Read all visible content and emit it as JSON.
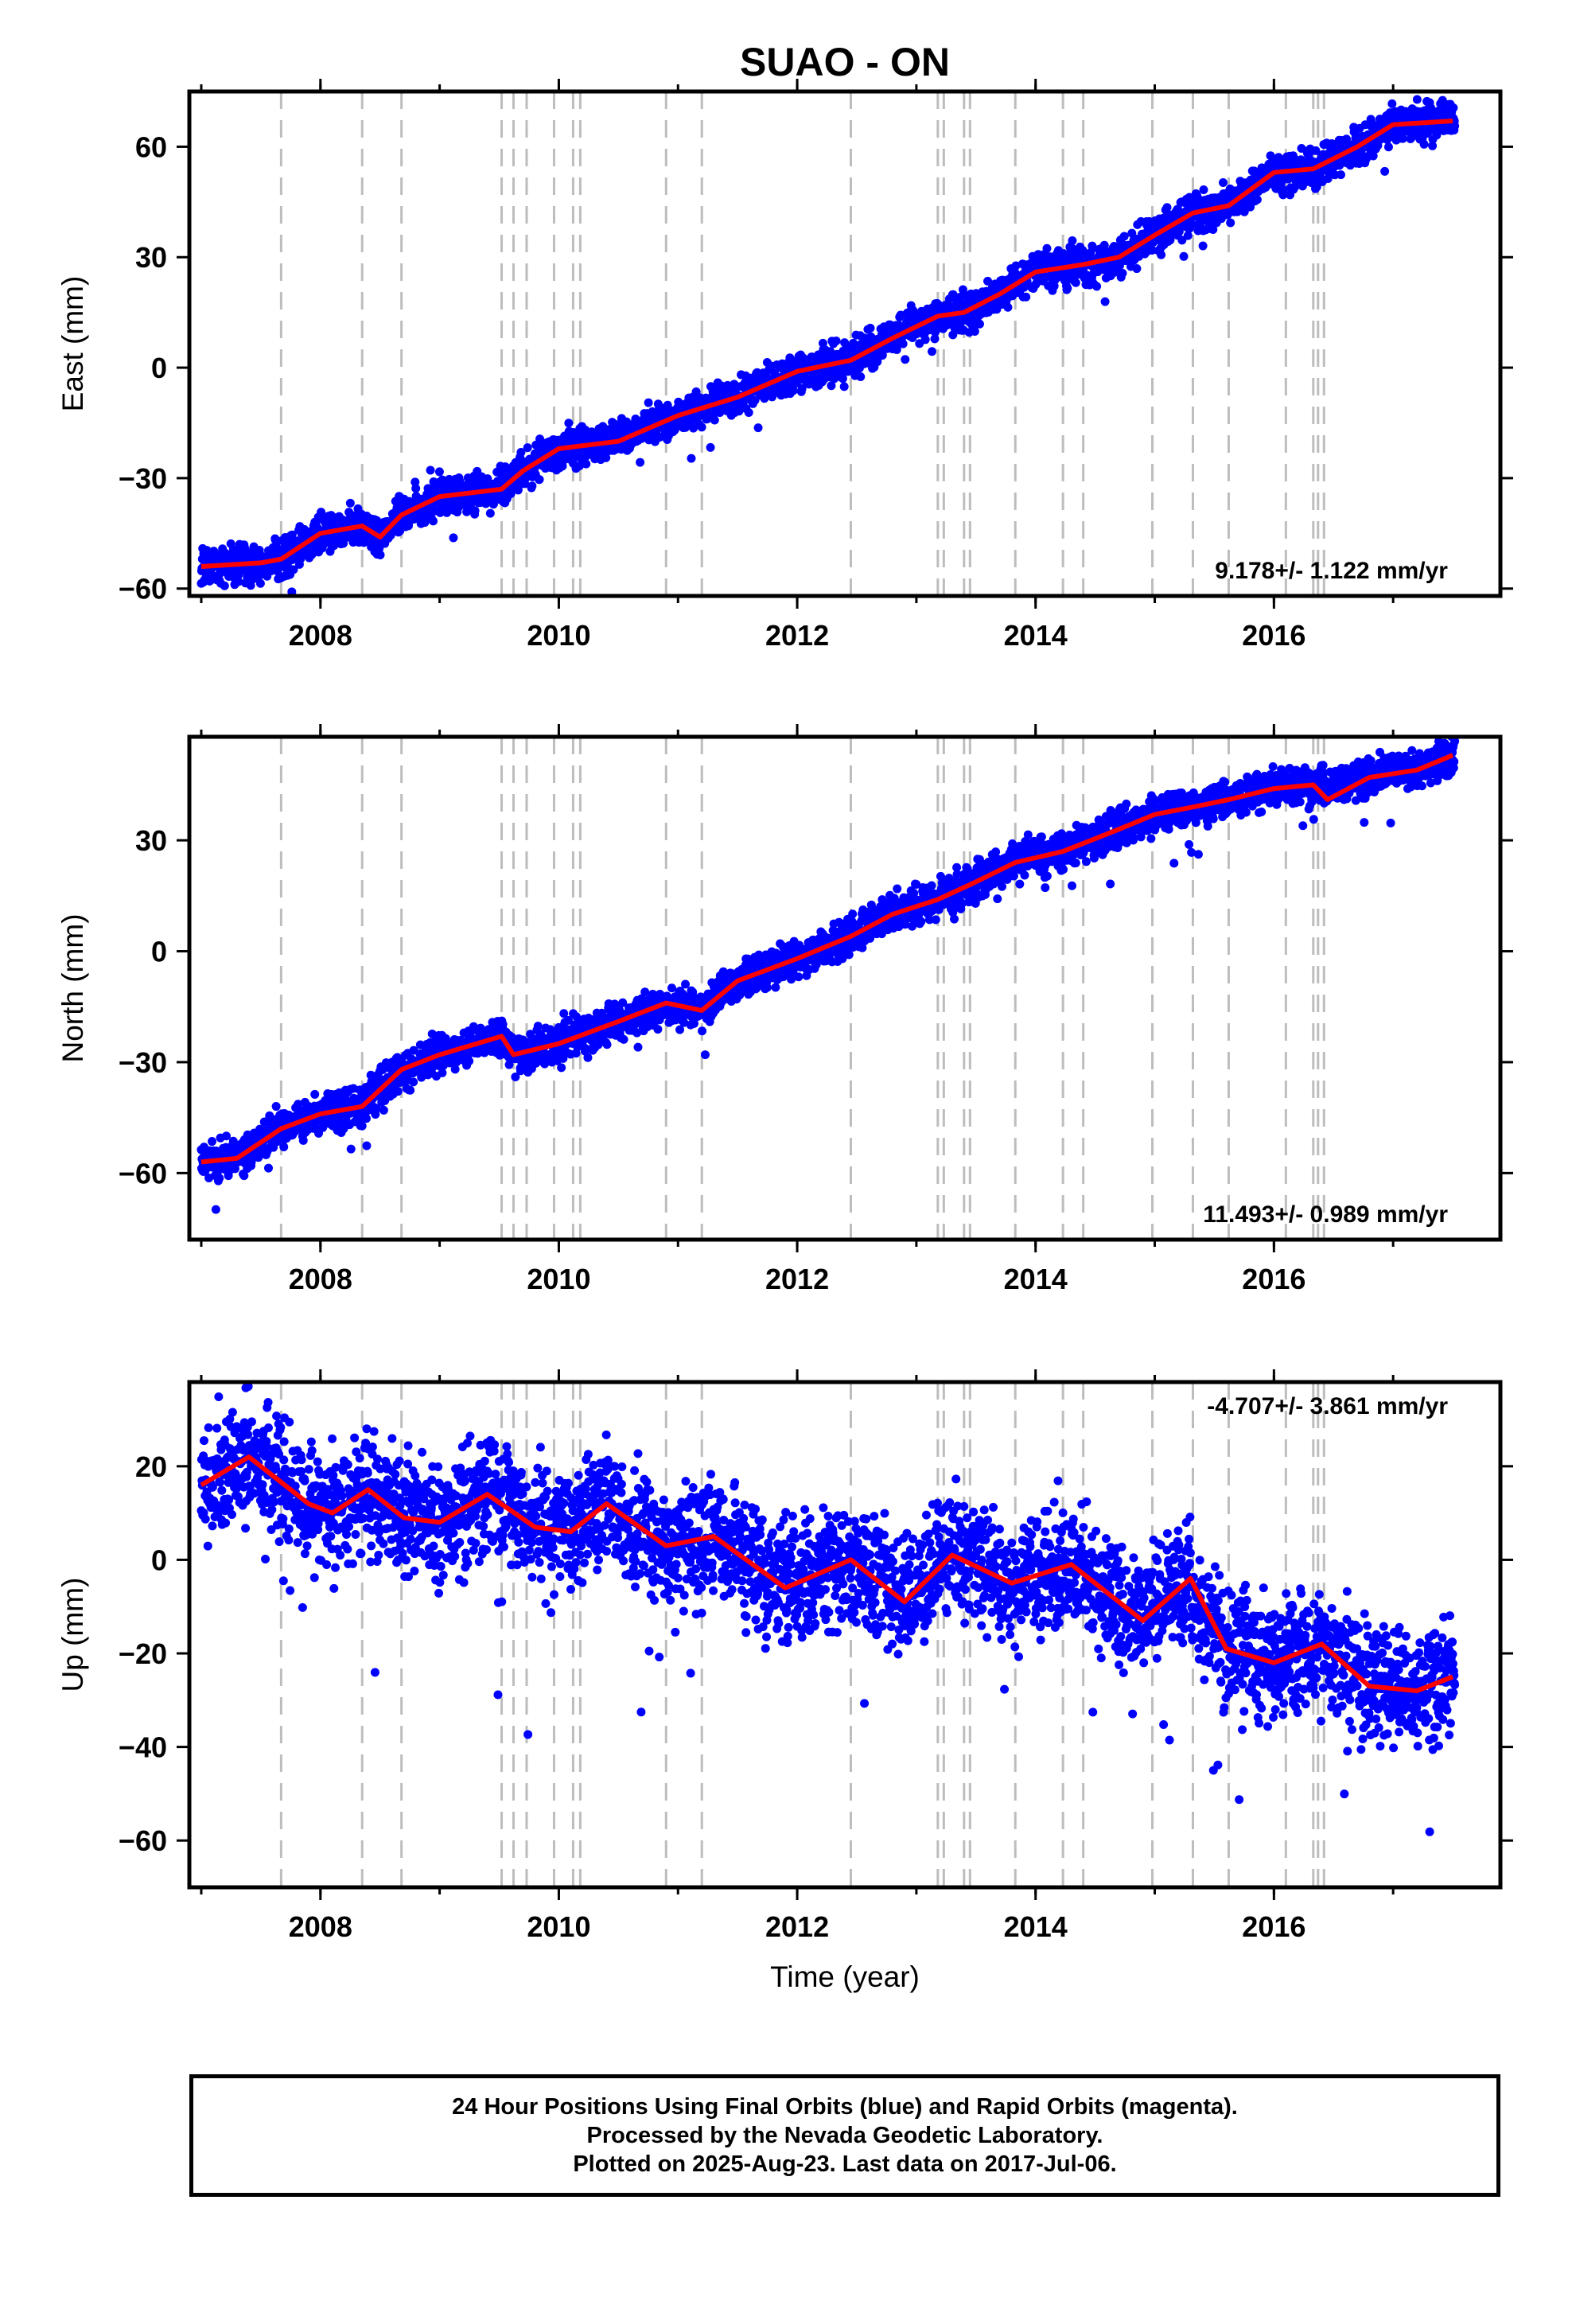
{
  "chart_data": {
    "title": "SUAO - ON",
    "type": "scatter",
    "xlabel": "Time (year)",
    "xlim": [
      2006.9,
      2017.9
    ],
    "x_ticks": [
      2008,
      2010,
      2012,
      2014,
      2016
    ],
    "x_tick_labels": [
      "2008",
      "2010",
      "2012",
      "2014",
      "2016"
    ],
    "grid": false,
    "event_lines": [
      2007.67,
      2008.35,
      2008.68,
      2009.52,
      2009.62,
      2009.73,
      2009.96,
      2010.12,
      2010.18,
      2010.9,
      2011.2,
      2012.45,
      2013.18,
      2013.23,
      2013.4,
      2013.45,
      2013.83,
      2014.23,
      2014.4,
      2014.98,
      2015.32,
      2015.62,
      2016.1,
      2016.33,
      2016.37,
      2016.42
    ],
    "panels": [
      {
        "name": "east",
        "ylabel": "East (mm)",
        "ylim": [
          -62,
          75
        ],
        "y_ticks": [
          60,
          30,
          0,
          -30,
          -60
        ],
        "y_tick_labels": [
          "60",
          "30",
          "0",
          "−30",
          "−60"
        ],
        "rate_label": "9.178+/- 1.122 mm/yr",
        "rate_position": "bottom-right",
        "series": [
          {
            "role": "daily positions",
            "color": "#0000ff",
            "marker": "dot",
            "x": [
              2007.0,
              2007.5,
              2007.67,
              2008.0,
              2008.35,
              2008.5,
              2008.68,
              2009.0,
              2009.52,
              2009.7,
              2010.0,
              2010.5,
              2011.0,
              2011.5,
              2012.0,
              2012.45,
              2012.8,
              2013.18,
              2013.4,
              2013.7,
              2014.0,
              2014.4,
              2014.7,
              2015.0,
              2015.32,
              2015.62,
              2016.0,
              2016.33,
              2016.7,
              2017.0,
              2017.5
            ],
            "y": [
              -54,
              -53,
              -52,
              -45,
              -43,
              -46,
              -40,
              -35,
              -33,
              -28,
              -22,
              -19,
              -13,
              -8,
              -1,
              2,
              8,
              14,
              15,
              20,
              26,
              28,
              30,
              36,
              42,
              44,
              53,
              54,
              60,
              66,
              67
            ]
          },
          {
            "role": "model fit",
            "color": "#ff0000",
            "x": [
              2007.0,
              2007.5,
              2007.67,
              2008.0,
              2008.35,
              2008.5,
              2008.68,
              2009.0,
              2009.52,
              2009.7,
              2010.0,
              2010.5,
              2011.0,
              2011.5,
              2012.0,
              2012.45,
              2012.8,
              2013.18,
              2013.4,
              2013.7,
              2014.0,
              2014.4,
              2014.7,
              2015.0,
              2015.32,
              2015.62,
              2016.0,
              2016.33,
              2016.7,
              2017.0,
              2017.5
            ],
            "y": [
              -54,
              -53,
              -52,
              -45,
              -43,
              -46,
              -40,
              -35,
              -33,
              -28,
              -22,
              -20,
              -13,
              -8,
              -1,
              2,
              8,
              14,
              15,
              20,
              26,
              28,
              30,
              36,
              42,
              44,
              53,
              54,
              60,
              66,
              67
            ]
          }
        ]
      },
      {
        "name": "north",
        "ylabel": "North (mm)",
        "ylim": [
          -78,
          58
        ],
        "y_ticks": [
          30,
          0,
          -30,
          -60
        ],
        "y_tick_labels": [
          "30",
          "0",
          "−30",
          "−60"
        ],
        "rate_label": "11.493+/- 0.989 mm/yr",
        "rate_position": "bottom-right",
        "series": [
          {
            "role": "daily positions",
            "color": "#0000ff",
            "marker": "dot",
            "x": [
              2007.0,
              2007.3,
              2007.67,
              2008.0,
              2008.35,
              2008.68,
              2009.0,
              2009.52,
              2009.62,
              2010.0,
              2010.5,
              2010.9,
              2011.2,
              2011.5,
              2012.0,
              2012.45,
              2012.8,
              2013.18,
              2013.45,
              2013.83,
              2014.23,
              2014.7,
              2015.0,
              2015.32,
              2015.62,
              2016.0,
              2016.33,
              2016.45,
              2016.8,
              2017.2,
              2017.5
            ],
            "y": [
              -57,
              -56,
              -48,
              -44,
              -42,
              -32,
              -28,
              -23,
              -28,
              -25,
              -19,
              -14,
              -16,
              -8,
              -2,
              4,
              10,
              14,
              18,
              24,
              27,
              33,
              37,
              39,
              41,
              44,
              45,
              44,
              47,
              49,
              53
            ]
          },
          {
            "role": "model fit",
            "color": "#ff0000",
            "x": [
              2007.0,
              2007.3,
              2007.67,
              2008.0,
              2008.35,
              2008.68,
              2009.0,
              2009.52,
              2009.62,
              2010.0,
              2010.5,
              2010.9,
              2011.2,
              2011.5,
              2012.0,
              2012.45,
              2012.8,
              2013.18,
              2013.45,
              2013.83,
              2014.23,
              2014.7,
              2015.0,
              2015.32,
              2015.62,
              2016.0,
              2016.33,
              2016.45,
              2016.8,
              2017.2,
              2017.5
            ],
            "y": [
              -57,
              -56,
              -48,
              -44,
              -42,
              -32,
              -28,
              -23,
              -28,
              -25,
              -19,
              -14,
              -16,
              -8,
              -2,
              4,
              10,
              14,
              18,
              24,
              27,
              33,
              37,
              39,
              41,
              44,
              45,
              41,
              47,
              49,
              53
            ]
          }
        ]
      },
      {
        "name": "up",
        "ylabel": "Up (mm)",
        "ylim": [
          -70,
          38
        ],
        "y_ticks": [
          20,
          0,
          -20,
          -40,
          -60
        ],
        "y_tick_labels": [
          "20",
          "0",
          "−20",
          "−40",
          "−60"
        ],
        "rate_label": "-4.707+/- 3.861 mm/yr",
        "rate_position": "top-right",
        "series": [
          {
            "role": "daily positions",
            "color": "#0000ff",
            "marker": "dot",
            "x": [
              2007.0,
              2007.4,
              2007.9,
              2008.1,
              2008.4,
              2008.7,
              2009.0,
              2009.4,
              2009.8,
              2010.1,
              2010.4,
              2010.9,
              2011.3,
              2011.9,
              2012.45,
              2012.9,
              2013.3,
              2013.8,
              2014.3,
              2014.9,
              2015.3,
              2015.6,
              2016.0,
              2016.4,
              2016.8,
              2017.2,
              2017.5
            ],
            "y": [
              16,
              22,
              12,
              10,
              15,
              9,
              8,
              14,
              7,
              6,
              12,
              3,
              5,
              -6,
              0,
              -9,
              1,
              -5,
              -1,
              -13,
              -4,
              -19,
              -22,
              -18,
              -27,
              -28,
              -25
            ]
          },
          {
            "role": "model fit",
            "color": "#ff0000",
            "x": [
              2007.0,
              2007.4,
              2007.9,
              2008.1,
              2008.4,
              2008.7,
              2009.0,
              2009.4,
              2009.8,
              2010.1,
              2010.4,
              2010.9,
              2011.3,
              2011.9,
              2012.45,
              2012.9,
              2013.3,
              2013.8,
              2014.3,
              2014.9,
              2015.3,
              2015.6,
              2016.0,
              2016.4,
              2016.8,
              2017.2,
              2017.5
            ],
            "y": [
              16,
              22,
              12,
              10,
              15,
              9,
              8,
              14,
              7,
              6,
              12,
              3,
              5,
              -6,
              0,
              -9,
              1,
              -5,
              -1,
              -13,
              -4,
              -19,
              -22,
              -18,
              -27,
              -28,
              -25
            ]
          }
        ]
      }
    ]
  },
  "footer": {
    "line1": "24 Hour Positions Using Final Orbits (blue) and Rapid Orbits (magenta).",
    "line2": "Processed by the Nevada Geodetic Laboratory.",
    "line3": "Plotted on 2025-Aug-23. Last data on 2017-Jul-06."
  }
}
